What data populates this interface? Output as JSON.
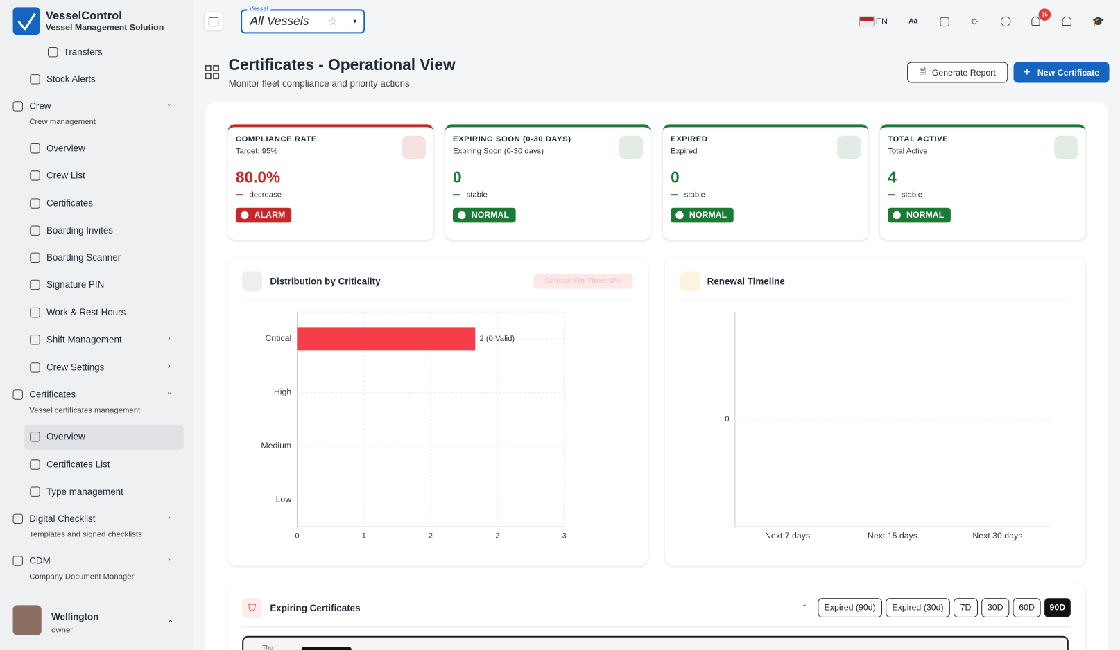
{
  "header": {
    "app_name": "VesselControl",
    "app_subtitle": "Vessel Management Solution",
    "vessel_label": "Vessel",
    "vessel_value": "All Vessels",
    "language": "EN",
    "notification_count": "15"
  },
  "sidebar": {
    "active_item": 13,
    "items": [
      {
        "label": "Transfers"
      },
      {
        "label": "Stock Alerts"
      },
      {
        "label": "Crew",
        "subtitle": "Crew management"
      },
      {
        "label": "Overview"
      },
      {
        "label": "Crew List"
      },
      {
        "label": "Certificates"
      },
      {
        "label": "Boarding Invites"
      },
      {
        "label": "Boarding Scanner"
      },
      {
        "label": "Signature PIN"
      },
      {
        "label": "Work & Rest Hours"
      },
      {
        "label": "Shift Management"
      },
      {
        "label": "Crew Settings"
      },
      {
        "label": "Certificates",
        "subtitle": "Vessel certificates management"
      },
      {
        "label": "Overview"
      },
      {
        "label": "Certificates List"
      },
      {
        "label": "Type management"
      },
      {
        "label": "Digital Checklist",
        "subtitle": "Templates and signed checklists"
      },
      {
        "label": "CDM",
        "subtitle": "Company Document Manager"
      }
    ]
  },
  "user": {
    "name": "Wellington",
    "role": "owner"
  },
  "page": {
    "title": "Certificates - Operational View",
    "subtitle": "Monitor fleet compliance and priority actions",
    "actions": [
      "Generate Report",
      "New Certificate"
    ]
  },
  "kpis": [
    {
      "title": "COMPLIANCE RATE",
      "subtitle": "Target: 95%",
      "value": "80.0%",
      "trend": "decrease",
      "status": "ALARM",
      "color": "#c62828"
    },
    {
      "title": "EXPIRING SOON (0-30 DAYS)",
      "subtitle": "Expiring Soon (0-30 days)",
      "value": "0",
      "trend": "stable",
      "status": "NORMAL",
      "color": "#1b7a34"
    },
    {
      "title": "EXPIRED",
      "subtitle": "Expired",
      "value": "0",
      "trend": "stable",
      "status": "NORMAL",
      "color": "#1b7a34"
    },
    {
      "title": "TOTAL ACTIVE",
      "subtitle": "Total Active",
      "value": "4",
      "trend": "stable",
      "status": "NORMAL",
      "color": "#1b7a34"
    }
  ],
  "criticality_chart": {
    "type": "bar",
    "orientation": "horizontal",
    "title": "Distribution by Criticality",
    "badge": "Critical On Time: 0%",
    "categories": [
      "Critical",
      "High",
      "Medium",
      "Low"
    ],
    "values": [
      2,
      0,
      0,
      0
    ],
    "value_labels": [
      "2 (0 Valid)",
      null,
      null,
      null
    ],
    "xlim": [
      0,
      3
    ],
    "xticks": [
      0,
      {
        "value": 0.75,
        "label": "1"
      },
      {
        "value": 1.5,
        "label": "2"
      },
      {
        "value": 2.25,
        "label": "2"
      },
      3
    ],
    "color": "#f43f4a"
  },
  "renewal_chart": {
    "type": "bar",
    "title": "Renewal Timeline",
    "categories": [
      "Next 7 days",
      "Next 15 days",
      "Next 30 days"
    ],
    "values": [
      0,
      0,
      0
    ],
    "ylim": [
      -1,
      1
    ],
    "yticks": [
      0
    ],
    "color": "#f59e0b"
  },
  "expiring": {
    "title": "Expiring Certificates",
    "filters": [
      "Expired (90d)",
      "Expired (30d)",
      "7D",
      "30D",
      "60D",
      "90D"
    ],
    "active_filter": "90D",
    "first_row_day": "Thu"
  }
}
